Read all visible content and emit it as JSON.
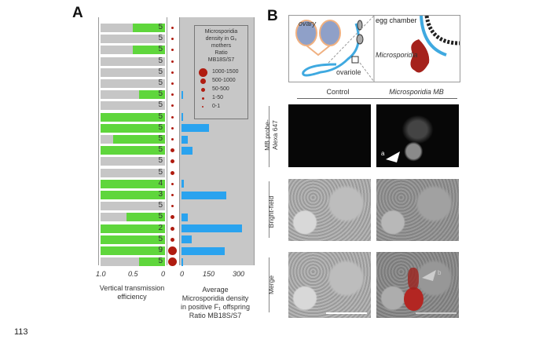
{
  "panel_a": {
    "letter": "A",
    "left_axis": {
      "ticks": [
        "1.0",
        "0.5",
        "0"
      ],
      "label": "Vertical transmission efficiency",
      "range": [
        1.0,
        0
      ]
    },
    "right_axis": {
      "ticks": [
        "0",
        "150",
        "300"
      ],
      "label_lines": [
        "Average",
        "Microsporidia density",
        "in positive F₁ offspring",
        "Ratio MB18S/S7"
      ],
      "range": [
        0,
        300
      ]
    },
    "legend": {
      "title_lines": [
        "Microsporidia",
        "density in G₀",
        "mothers",
        "Ratio",
        "MB18S/S7"
      ],
      "entries": [
        {
          "label": "1000-1500",
          "size": 5
        },
        {
          "label": "500-1000",
          "size": 4
        },
        {
          "label": "50-500",
          "size": 3
        },
        {
          "label": "1-50",
          "size": 2
        },
        {
          "label": "0-1",
          "size": 1
        }
      ]
    },
    "colors": {
      "transmission": "#5fd63c",
      "density": "#2aa3ef",
      "dots": "#b01c10",
      "background": "#c6c6c6"
    },
    "rows": [
      {
        "efficiency": 0.5,
        "n": "5",
        "mother_density_class": 2,
        "offspring_density": 0
      },
      {
        "efficiency": 0,
        "n": "5",
        "mother_density_class": 2,
        "offspring_density": 0
      },
      {
        "efficiency": 0.5,
        "n": "5",
        "mother_density_class": 2,
        "offspring_density": 0
      },
      {
        "efficiency": 0,
        "n": "5",
        "mother_density_class": 2,
        "offspring_density": 0
      },
      {
        "efficiency": 0,
        "n": "5",
        "mother_density_class": 2,
        "offspring_density": 0
      },
      {
        "efficiency": 0,
        "n": "5",
        "mother_density_class": 2,
        "offspring_density": 0
      },
      {
        "efficiency": 0.4,
        "n": "5",
        "mother_density_class": 2,
        "offspring_density": 3
      },
      {
        "efficiency": 0,
        "n": "5",
        "mother_density_class": 2,
        "offspring_density": 0
      },
      {
        "efficiency": 1.0,
        "n": "5",
        "mother_density_class": 2,
        "offspring_density": 3
      },
      {
        "efficiency": 1.0,
        "n": "5",
        "mother_density_class": 2,
        "offspring_density": 136
      },
      {
        "efficiency": 0.8,
        "n": "5",
        "mother_density_class": 2,
        "offspring_density": 30
      },
      {
        "efficiency": 1.0,
        "n": "5",
        "mother_density_class": 3,
        "offspring_density": 55
      },
      {
        "efficiency": 0,
        "n": "5",
        "mother_density_class": 3,
        "offspring_density": 0
      },
      {
        "efficiency": 0,
        "n": "5",
        "mother_density_class": 3,
        "offspring_density": 0
      },
      {
        "efficiency": 1.0,
        "n": "4",
        "mother_density_class": 2,
        "offspring_density": 12
      },
      {
        "efficiency": 1.0,
        "n": "3",
        "mother_density_class": 2,
        "offspring_density": 222
      },
      {
        "efficiency": 0,
        "n": "5",
        "mother_density_class": 2,
        "offspring_density": 0
      },
      {
        "efficiency": 0.6,
        "n": "5",
        "mother_density_class": 3,
        "offspring_density": 31
      },
      {
        "efficiency": 1.0,
        "n": "2",
        "mother_density_class": 3,
        "offspring_density": 300
      },
      {
        "efficiency": 1.0,
        "n": "5",
        "mother_density_class": 3,
        "offspring_density": 51
      },
      {
        "efficiency": 1.0,
        "n": "9",
        "mother_density_class": 5,
        "offspring_density": 214
      },
      {
        "efficiency": 0.4,
        "n": "5",
        "mother_density_class": 5,
        "offspring_density": 4
      }
    ]
  },
  "panel_b": {
    "letter": "B",
    "diagram": {
      "ovary": "ovary",
      "ovariole": "ovariole",
      "egg_chamber": "egg chamber",
      "microsporidia": "Microsporidia"
    },
    "columns": [
      "Control",
      "Microsporidia MB"
    ],
    "rows": [
      "MB probe-\nAlexa 647",
      "Bright-field",
      "Merge"
    ],
    "arrow_labels": {
      "a": "a",
      "b": "b"
    }
  },
  "line_number": "113"
}
